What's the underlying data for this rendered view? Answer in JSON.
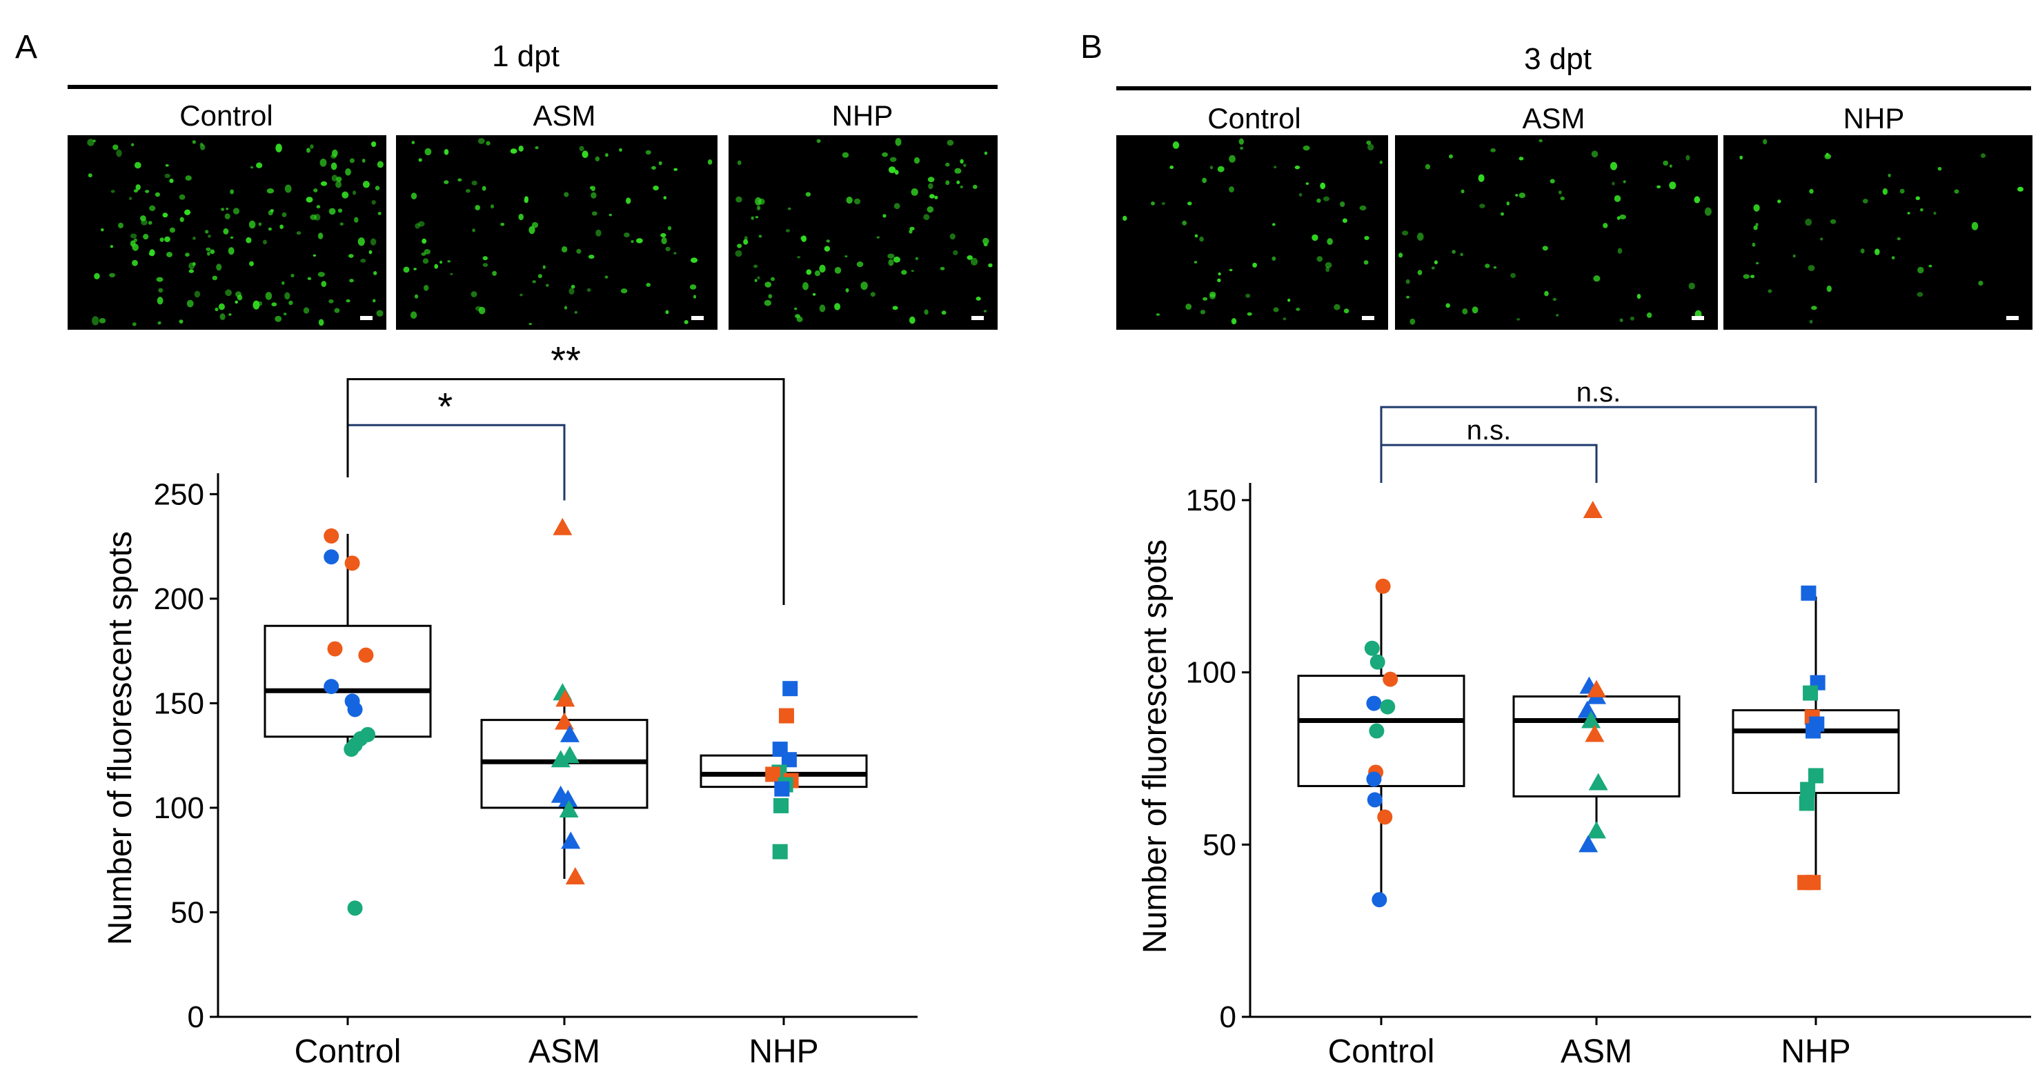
{
  "colors": {
    "orange": "#EE5A1A",
    "blue": "#1565E0",
    "green": "#19A97B",
    "bracket_navy": "#1F3A6B",
    "bracket_black": "#000000",
    "micrograph_background": "#000000",
    "cell_green": "#33DD22"
  },
  "panels": [
    {
      "letter": "A",
      "timepoint": "1 dpt",
      "micrographs": [
        {
          "label": "Control",
          "density": "high"
        },
        {
          "label": "ASM",
          "density": "medium"
        },
        {
          "label": "NHP",
          "density": "medium"
        }
      ]
    },
    {
      "letter": "B",
      "timepoint": "3 dpt",
      "micrographs": [
        {
          "label": "Control",
          "density": "low"
        },
        {
          "label": "ASM",
          "density": "low"
        },
        {
          "label": "NHP",
          "density": "low"
        }
      ]
    }
  ],
  "chart_data": [
    {
      "type": "boxplot",
      "ylabel": "Number of fluorescent spots",
      "categories": [
        "Control",
        "ASM",
        "NHP"
      ],
      "ylim": [
        0,
        260
      ],
      "yticks": [
        0,
        50,
        100,
        150,
        200,
        250
      ],
      "grid": false,
      "boxes": [
        {
          "q1": 134,
          "median": 156,
          "q3": 187,
          "whisker_low": 128,
          "whisker_high": 231
        },
        {
          "q1": 100,
          "median": 122,
          "q3": 142,
          "whisker_low": 66,
          "whisker_high": 154
        },
        {
          "q1": 110,
          "median": 116,
          "q3": 125,
          "whisker_low": 110,
          "whisker_high": 125
        }
      ],
      "points": [
        {
          "cat": 0,
          "dx": -0.18,
          "y": 230,
          "color": "orange",
          "shape": "circle"
        },
        {
          "cat": 0,
          "dx": -0.18,
          "y": 220,
          "color": "blue",
          "shape": "circle"
        },
        {
          "cat": 0,
          "dx": 0.05,
          "y": 217,
          "color": "orange",
          "shape": "circle"
        },
        {
          "cat": 0,
          "dx": -0.14,
          "y": 176,
          "color": "orange",
          "shape": "circle"
        },
        {
          "cat": 0,
          "dx": 0.2,
          "y": 173,
          "color": "orange",
          "shape": "circle"
        },
        {
          "cat": 0,
          "dx": -0.18,
          "y": 158,
          "color": "blue",
          "shape": "circle"
        },
        {
          "cat": 0,
          "dx": 0.05,
          "y": 151,
          "color": "blue",
          "shape": "circle"
        },
        {
          "cat": 0,
          "dx": 0.08,
          "y": 147,
          "color": "blue",
          "shape": "circle"
        },
        {
          "cat": 0,
          "dx": 0.22,
          "y": 135,
          "color": "green",
          "shape": "circle"
        },
        {
          "cat": 0,
          "dx": 0.14,
          "y": 133,
          "color": "green",
          "shape": "circle"
        },
        {
          "cat": 0,
          "dx": 0.08,
          "y": 130,
          "color": "green",
          "shape": "circle"
        },
        {
          "cat": 0,
          "dx": 0.04,
          "y": 128,
          "color": "green",
          "shape": "circle"
        },
        {
          "cat": 0,
          "dx": 0.08,
          "y": 52,
          "color": "green",
          "shape": "circle"
        },
        {
          "cat": 1,
          "dx": -0.02,
          "y": 234,
          "color": "orange",
          "shape": "triangle"
        },
        {
          "cat": 1,
          "dx": -0.02,
          "y": 155,
          "color": "green",
          "shape": "triangle"
        },
        {
          "cat": 1,
          "dx": 0.01,
          "y": 152,
          "color": "orange",
          "shape": "triangle"
        },
        {
          "cat": 1,
          "dx": 0.0,
          "y": 141,
          "color": "orange",
          "shape": "triangle"
        },
        {
          "cat": 1,
          "dx": 0.06,
          "y": 135,
          "color": "blue",
          "shape": "triangle"
        },
        {
          "cat": 1,
          "dx": 0.06,
          "y": 125,
          "color": "green",
          "shape": "triangle"
        },
        {
          "cat": 1,
          "dx": -0.04,
          "y": 123,
          "color": "green",
          "shape": "triangle"
        },
        {
          "cat": 1,
          "dx": -0.04,
          "y": 106,
          "color": "blue",
          "shape": "triangle"
        },
        {
          "cat": 1,
          "dx": 0.04,
          "y": 104,
          "color": "blue",
          "shape": "triangle"
        },
        {
          "cat": 1,
          "dx": 0.05,
          "y": 99,
          "color": "green",
          "shape": "triangle"
        },
        {
          "cat": 1,
          "dx": 0.07,
          "y": 84,
          "color": "blue",
          "shape": "triangle"
        },
        {
          "cat": 1,
          "dx": 0.12,
          "y": 67,
          "color": "orange",
          "shape": "triangle"
        },
        {
          "cat": 2,
          "dx": 0.07,
          "y": 157,
          "color": "blue",
          "shape": "square"
        },
        {
          "cat": 2,
          "dx": 0.03,
          "y": 144,
          "color": "orange",
          "shape": "square"
        },
        {
          "cat": 2,
          "dx": -0.04,
          "y": 128,
          "color": "blue",
          "shape": "square"
        },
        {
          "cat": 2,
          "dx": 0.06,
          "y": 123,
          "color": "blue",
          "shape": "square"
        },
        {
          "cat": 2,
          "dx": -0.05,
          "y": 117,
          "color": "green",
          "shape": "square"
        },
        {
          "cat": 2,
          "dx": -0.12,
          "y": 116,
          "color": "orange",
          "shape": "square"
        },
        {
          "cat": 2,
          "dx": 0.08,
          "y": 113,
          "color": "orange",
          "shape": "square"
        },
        {
          "cat": 2,
          "dx": 0.02,
          "y": 111,
          "color": "green",
          "shape": "square"
        },
        {
          "cat": 2,
          "dx": -0.02,
          "y": 109,
          "color": "blue",
          "shape": "square"
        },
        {
          "cat": 2,
          "dx": -0.03,
          "y": 101,
          "color": "green",
          "shape": "square"
        },
        {
          "cat": 2,
          "dx": -0.04,
          "y": 79,
          "color": "green",
          "shape": "square"
        }
      ],
      "annotations": [
        {
          "from": 0,
          "to": 1,
          "label": "*",
          "level": 283,
          "from_y": 258,
          "to_y": 247,
          "color": "bracket_navy"
        },
        {
          "from": 0,
          "to": 2,
          "label": "**",
          "level": 305,
          "from_y": 258,
          "to_y": 197,
          "color": "bracket_black"
        }
      ]
    },
    {
      "type": "boxplot",
      "ylabel": "Number of fluorescent spots",
      "categories": [
        "Control",
        "ASM",
        "NHP"
      ],
      "ylim": [
        0,
        155
      ],
      "yticks": [
        0,
        50,
        100,
        150
      ],
      "grid": false,
      "boxes": [
        {
          "q1": 67,
          "median": 86,
          "q3": 99,
          "whisker_low": 34,
          "whisker_high": 125
        },
        {
          "q1": 64,
          "median": 86,
          "q3": 93,
          "whisker_low": 52,
          "whisker_high": 95
        },
        {
          "q1": 65,
          "median": 83,
          "q3": 89,
          "whisker_low": 39,
          "whisker_high": 122
        }
      ],
      "points": [
        {
          "cat": 0,
          "dx": 0.02,
          "y": 125,
          "color": "orange",
          "shape": "circle"
        },
        {
          "cat": 0,
          "dx": -0.1,
          "y": 107,
          "color": "green",
          "shape": "circle"
        },
        {
          "cat": 0,
          "dx": -0.04,
          "y": 103,
          "color": "green",
          "shape": "circle"
        },
        {
          "cat": 0,
          "dx": 0.1,
          "y": 98,
          "color": "orange",
          "shape": "circle"
        },
        {
          "cat": 0,
          "dx": -0.08,
          "y": 91,
          "color": "blue",
          "shape": "circle"
        },
        {
          "cat": 0,
          "dx": 0.07,
          "y": 90,
          "color": "green",
          "shape": "circle"
        },
        {
          "cat": 0,
          "dx": -0.05,
          "y": 83,
          "color": "green",
          "shape": "circle"
        },
        {
          "cat": 0,
          "dx": -0.06,
          "y": 71,
          "color": "orange",
          "shape": "circle"
        },
        {
          "cat": 0,
          "dx": -0.08,
          "y": 69,
          "color": "blue",
          "shape": "circle"
        },
        {
          "cat": 0,
          "dx": -0.07,
          "y": 63,
          "color": "blue",
          "shape": "circle"
        },
        {
          "cat": 0,
          "dx": 0.04,
          "y": 58,
          "color": "orange",
          "shape": "circle"
        },
        {
          "cat": 0,
          "dx": -0.02,
          "y": 34,
          "color": "blue",
          "shape": "circle"
        },
        {
          "cat": 1,
          "dx": -0.04,
          "y": 147,
          "color": "orange",
          "shape": "triangle"
        },
        {
          "cat": 1,
          "dx": -0.08,
          "y": 96,
          "color": "blue",
          "shape": "triangle"
        },
        {
          "cat": 1,
          "dx": 0.0,
          "y": 93,
          "color": "blue",
          "shape": "triangle"
        },
        {
          "cat": 1,
          "dx": 0.0,
          "y": 95,
          "color": "orange",
          "shape": "triangle"
        },
        {
          "cat": 1,
          "dx": -0.1,
          "y": 89,
          "color": "blue",
          "shape": "triangle"
        },
        {
          "cat": 1,
          "dx": -0.06,
          "y": 86,
          "color": "green",
          "shape": "triangle"
        },
        {
          "cat": 1,
          "dx": -0.02,
          "y": 82,
          "color": "orange",
          "shape": "triangle"
        },
        {
          "cat": 1,
          "dx": 0.02,
          "y": 68,
          "color": "green",
          "shape": "triangle"
        },
        {
          "cat": 1,
          "dx": 0.0,
          "y": 54,
          "color": "green",
          "shape": "triangle"
        },
        {
          "cat": 1,
          "dx": -0.09,
          "y": 50,
          "color": "blue",
          "shape": "triangle"
        },
        {
          "cat": 2,
          "dx": -0.08,
          "y": 123,
          "color": "blue",
          "shape": "square"
        },
        {
          "cat": 2,
          "dx": 0.02,
          "y": 97,
          "color": "blue",
          "shape": "square"
        },
        {
          "cat": 2,
          "dx": -0.06,
          "y": 94,
          "color": "green",
          "shape": "square"
        },
        {
          "cat": 2,
          "dx": -0.04,
          "y": 87,
          "color": "orange",
          "shape": "square"
        },
        {
          "cat": 2,
          "dx": 0.01,
          "y": 85,
          "color": "blue",
          "shape": "square"
        },
        {
          "cat": 2,
          "dx": -0.03,
          "y": 83,
          "color": "blue",
          "shape": "square"
        },
        {
          "cat": 2,
          "dx": 0.0,
          "y": 70,
          "color": "green",
          "shape": "square"
        },
        {
          "cat": 2,
          "dx": -0.09,
          "y": 66,
          "color": "green",
          "shape": "square"
        },
        {
          "cat": 2,
          "dx": -0.1,
          "y": 62,
          "color": "green",
          "shape": "square"
        },
        {
          "cat": 2,
          "dx": -0.12,
          "y": 39,
          "color": "orange",
          "shape": "square"
        },
        {
          "cat": 2,
          "dx": -0.03,
          "y": 39,
          "color": "orange",
          "shape": "square"
        }
      ],
      "annotations": [
        {
          "from": 0,
          "to": 1,
          "label": "n.s.",
          "level": 166,
          "from_y": 155,
          "to_y": 155,
          "color": "bracket_navy"
        },
        {
          "from": 0,
          "to": 2,
          "label": "n.s.",
          "level": 177,
          "from_y": 155,
          "to_y": 155,
          "color": "bracket_navy"
        }
      ]
    }
  ]
}
